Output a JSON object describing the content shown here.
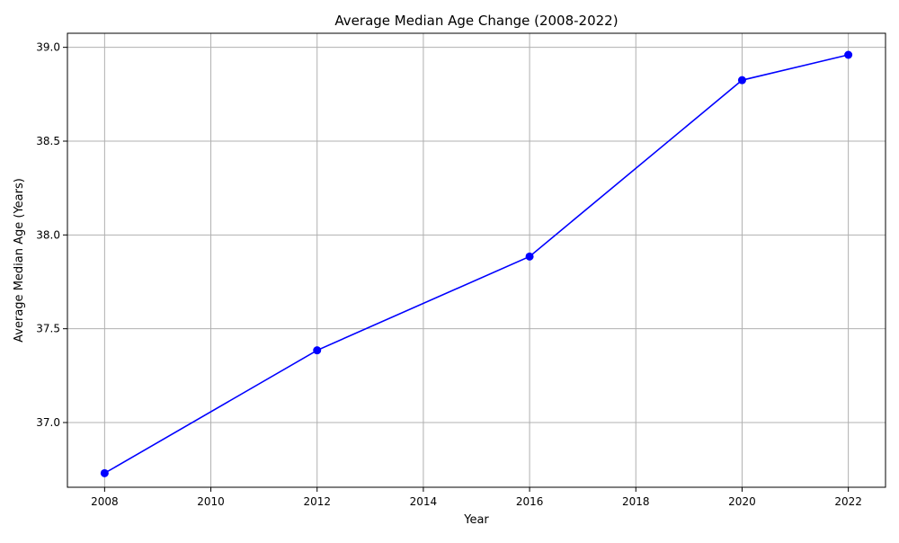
{
  "chart_data": {
    "type": "line",
    "title": "Average Median Age Change (2008-2022)",
    "xlabel": "Year",
    "ylabel": "Average Median Age (Years)",
    "x": [
      2008,
      2012,
      2016,
      2020,
      2022
    ],
    "series": [
      {
        "values": [
          36.73,
          37.385,
          37.885,
          38.825,
          38.96
        ],
        "color": "#0000ff"
      }
    ],
    "xlim": [
      2007.3,
      2022.7
    ],
    "ylim": [
      36.655,
      39.075
    ],
    "xticks": [
      2008,
      2010,
      2012,
      2014,
      2016,
      2018,
      2020,
      2022
    ],
    "yticks": [
      37.0,
      37.5,
      38.0,
      38.5,
      39.0
    ],
    "ytick_labels": [
      "37.0",
      "37.5",
      "38.0",
      "38.5",
      "39.0"
    ],
    "grid": true,
    "marker": "circle"
  }
}
